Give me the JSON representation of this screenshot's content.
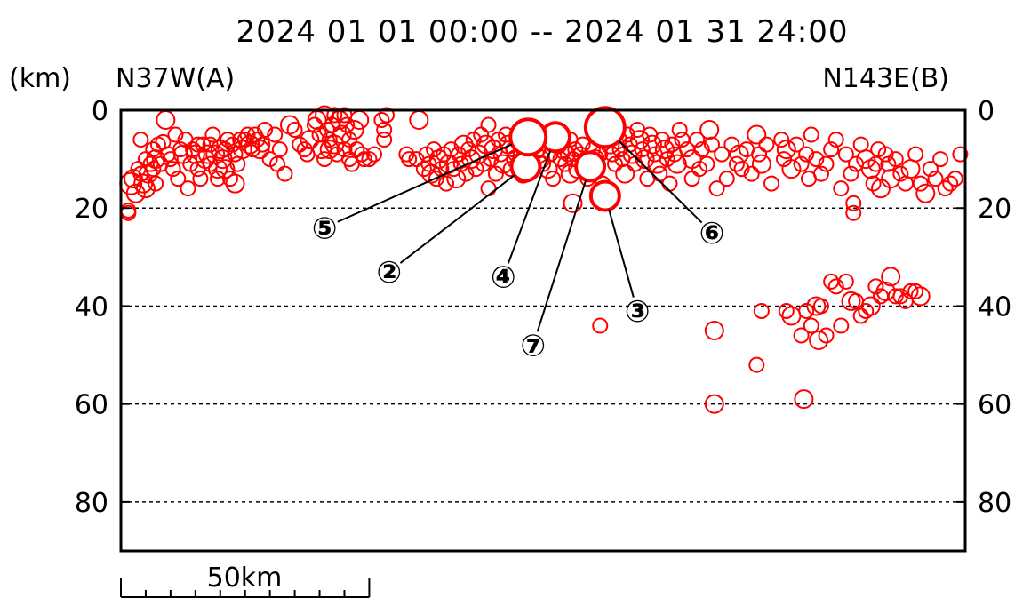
{
  "chart_data": {
    "type": "scatter",
    "title": "2024  01  01  00:00  --  2024  01  31  24:00",
    "unit_label": "(km)",
    "left_end_label": "N37W(A)",
    "right_end_label": "N143E(B)",
    "y_axis": {
      "inverted": true,
      "ylim": [
        0,
        90
      ],
      "ticks": [
        0,
        20,
        40,
        60,
        80
      ],
      "tick_labels": [
        "0",
        "20",
        "40",
        "60",
        "80"
      ],
      "dashed_grid": [
        20,
        40,
        60,
        80
      ]
    },
    "x_axis": {
      "xlim": [
        0,
        170
      ],
      "units": "km"
    },
    "scale_bar": {
      "label": "50km",
      "length_km": 50,
      "minor_tick_km": 5
    },
    "marker_color": "#ff0000",
    "main_shocks": [
      {
        "label": "②",
        "x": 81.5,
        "depth": 11.5,
        "label_x": 54,
        "label_y": 33,
        "mag_size": 6
      },
      {
        "label": "③",
        "x": 97.5,
        "depth": 17.5,
        "label_x": 104,
        "label_y": 41,
        "mag_size": 6
      },
      {
        "label": "④",
        "x": 87.5,
        "depth": 5.5,
        "label_x": 77,
        "label_y": 34,
        "mag_size": 6
      },
      {
        "label": "⑤",
        "x": 82.0,
        "depth": 5.5,
        "label_x": 41,
        "label_y": 24,
        "mag_size": 8
      },
      {
        "label": "⑥",
        "x": 97.5,
        "depth": 3.5,
        "label_x": 119,
        "label_y": 25,
        "mag_size": 9
      },
      {
        "label": "⑦",
        "x": 94.5,
        "depth": 11.5,
        "label_x": 83,
        "label_y": 48,
        "mag_size": 6
      }
    ],
    "points": [
      [
        2,
        15,
        4
      ],
      [
        1.5,
        20.5,
        2
      ],
      [
        2.5,
        14,
        3
      ],
      [
        3,
        17,
        3
      ],
      [
        3.5,
        12,
        2
      ],
      [
        4,
        13,
        2
      ],
      [
        4,
        6,
        2
      ],
      [
        4.5,
        15,
        3
      ],
      [
        5,
        10,
        2
      ],
      [
        5,
        16,
        3
      ],
      [
        5.5,
        13,
        3
      ],
      [
        6,
        11,
        2
      ],
      [
        6.5,
        12,
        2
      ],
      [
        6.5,
        8,
        2
      ],
      [
        7,
        10,
        3
      ],
      [
        7,
        15,
        2
      ],
      [
        7.5,
        7,
        2
      ],
      [
        8,
        11,
        2
      ],
      [
        8.5,
        6.5,
        2
      ],
      [
        9,
        2,
        3
      ],
      [
        9.5,
        9,
        2
      ],
      [
        10,
        10,
        2
      ],
      [
        10.5,
        12,
        2
      ],
      [
        11,
        5,
        2
      ],
      [
        11.5,
        14,
        2
      ],
      [
        12,
        8,
        2
      ],
      [
        12.5,
        9,
        3
      ],
      [
        13,
        6,
        2
      ],
      [
        13.5,
        16,
        2
      ],
      [
        14,
        11,
        2
      ],
      [
        14.5,
        8,
        2
      ],
      [
        15,
        9,
        3
      ],
      [
        15.5,
        7,
        2
      ],
      [
        15.5,
        12,
        2
      ],
      [
        16,
        14,
        2
      ],
      [
        16.5,
        7,
        2
      ],
      [
        17,
        10,
        3
      ],
      [
        17.5,
        9,
        3
      ],
      [
        18,
        11,
        2
      ],
      [
        18,
        7,
        2
      ],
      [
        18.5,
        5,
        2
      ],
      [
        19,
        9,
        3
      ],
      [
        19.5,
        12,
        3
      ],
      [
        19.5,
        14,
        2
      ],
      [
        20,
        8,
        3
      ],
      [
        20.5,
        10,
        3
      ],
      [
        21,
        8,
        2
      ],
      [
        21,
        12,
        3
      ],
      [
        21.5,
        6,
        2
      ],
      [
        22,
        14,
        2
      ],
      [
        22.5,
        7,
        2
      ],
      [
        23,
        9,
        2
      ],
      [
        23,
        15,
        3
      ],
      [
        23.5,
        11,
        2
      ],
      [
        24,
        6,
        2
      ],
      [
        24.5,
        8,
        3
      ],
      [
        25,
        6,
        2
      ],
      [
        25.5,
        5,
        2
      ],
      [
        26,
        7,
        3
      ],
      [
        26.5,
        8,
        2
      ],
      [
        27,
        5,
        2
      ],
      [
        27.5,
        6,
        2
      ],
      [
        28,
        8,
        3
      ],
      [
        28.5,
        7,
        2
      ],
      [
        29,
        4,
        2
      ],
      [
        30,
        10,
        2
      ],
      [
        31,
        5,
        2
      ],
      [
        31.5,
        11,
        2
      ],
      [
        32,
        8,
        2
      ],
      [
        33,
        13,
        2
      ],
      [
        34,
        3,
        3
      ],
      [
        35,
        4,
        2
      ],
      [
        36,
        7,
        2
      ],
      [
        37,
        8,
        2
      ],
      [
        37.5,
        9,
        2
      ],
      [
        38,
        6,
        3
      ],
      [
        39,
        3,
        2
      ],
      [
        39.5,
        2,
        3
      ],
      [
        40,
        5,
        2
      ],
      [
        40.5,
        8,
        3
      ],
      [
        41,
        10,
        2
      ],
      [
        41,
        1,
        3
      ],
      [
        41.5,
        4,
        2
      ],
      [
        42,
        6,
        2
      ],
      [
        42,
        8,
        3
      ],
      [
        42.5,
        3,
        2
      ],
      [
        43,
        1,
        2
      ],
      [
        43,
        7,
        3
      ],
      [
        43.5,
        9,
        2
      ],
      [
        44,
        2,
        3
      ],
      [
        44.5,
        5,
        3
      ],
      [
        45,
        8,
        2
      ],
      [
        45,
        1,
        2
      ],
      [
        45.5,
        3,
        2
      ],
      [
        46,
        6,
        2
      ],
      [
        46,
        10,
        2
      ],
      [
        46.5,
        11,
        2
      ],
      [
        47,
        4,
        3
      ],
      [
        47.5,
        8,
        2
      ],
      [
        48,
        2,
        3
      ],
      [
        48.5,
        9,
        2
      ],
      [
        49,
        10,
        2
      ],
      [
        50,
        10,
        2
      ],
      [
        51,
        9,
        2
      ],
      [
        52.5,
        2,
        2
      ],
      [
        53,
        4,
        2
      ],
      [
        53,
        6,
        2
      ],
      [
        53.5,
        1,
        2
      ],
      [
        57.5,
        9,
        2
      ],
      [
        58,
        10,
        2
      ],
      [
        59.5,
        10,
        2
      ],
      [
        60,
        2,
        3
      ],
      [
        61,
        12,
        2
      ],
      [
        61.5,
        9,
        2
      ],
      [
        62,
        11,
        2
      ],
      [
        62.5,
        13,
        3
      ],
      [
        63,
        8,
        2
      ],
      [
        63.5,
        14,
        2
      ],
      [
        64,
        10,
        3
      ],
      [
        64.5,
        12,
        2
      ],
      [
        65,
        9,
        2
      ],
      [
        65.5,
        15,
        2
      ],
      [
        66,
        11,
        3
      ],
      [
        66.5,
        8,
        2
      ],
      [
        67,
        12,
        2
      ],
      [
        67.5,
        14,
        3
      ],
      [
        68,
        9,
        2
      ],
      [
        68.5,
        11,
        2
      ],
      [
        69,
        7,
        3
      ],
      [
        69.5,
        13,
        2
      ],
      [
        70,
        8,
        2
      ],
      [
        70.5,
        10,
        3
      ],
      [
        71,
        6,
        2
      ],
      [
        71.5,
        12,
        2
      ],
      [
        72,
        9,
        3
      ],
      [
        72.5,
        5,
        2
      ],
      [
        73,
        11,
        2
      ],
      [
        73.5,
        7,
        3
      ],
      [
        74,
        3,
        2
      ],
      [
        74,
        16,
        2
      ],
      [
        74.5,
        10,
        2
      ],
      [
        75,
        8,
        3
      ],
      [
        75.5,
        13,
        2
      ],
      [
        76,
        6,
        2
      ],
      [
        76.5,
        9,
        2
      ],
      [
        77,
        11,
        3
      ],
      [
        77.5,
        5,
        2
      ],
      [
        78,
        7,
        3
      ],
      [
        78.5,
        12,
        2
      ],
      [
        79,
        8,
        2
      ],
      [
        79.5,
        10,
        3
      ],
      [
        80,
        6,
        2
      ],
      [
        80.5,
        9,
        2
      ],
      [
        81,
        13,
        3
      ],
      [
        84,
        8,
        2
      ],
      [
        84.5,
        10,
        3
      ],
      [
        85,
        11,
        2
      ],
      [
        85.5,
        6,
        2
      ],
      [
        86,
        12,
        3
      ],
      [
        86.5,
        9,
        2
      ],
      [
        87,
        14,
        2
      ],
      [
        88,
        7,
        3
      ],
      [
        88.5,
        10,
        2
      ],
      [
        89,
        8,
        3
      ],
      [
        89.5,
        11,
        2
      ],
      [
        90,
        9,
        2
      ],
      [
        90.5,
        6,
        2
      ],
      [
        90.5,
        13,
        3
      ],
      [
        91,
        10,
        2
      ],
      [
        91.5,
        8,
        2
      ],
      [
        91,
        19,
        3
      ],
      [
        92,
        12,
        3
      ],
      [
        92.5,
        9,
        2
      ],
      [
        93,
        7,
        2
      ],
      [
        93.5,
        11,
        3
      ],
      [
        94,
        14,
        2
      ],
      [
        95,
        8,
        2
      ],
      [
        95.5,
        10,
        3
      ],
      [
        96,
        12,
        2
      ],
      [
        96.5,
        9,
        2
      ],
      [
        96.5,
        44,
        2
      ],
      [
        97,
        15,
        2
      ],
      [
        98,
        5,
        2
      ],
      [
        98.5,
        7,
        3
      ],
      [
        99,
        9,
        2
      ],
      [
        99.5,
        11,
        2
      ],
      [
        100,
        3,
        2
      ],
      [
        100,
        6,
        3
      ],
      [
        100.5,
        8,
        2
      ],
      [
        101,
        10,
        2
      ],
      [
        101.5,
        13,
        3
      ],
      [
        102,
        5,
        2
      ],
      [
        102.5,
        7,
        2
      ],
      [
        103,
        9,
        3
      ],
      [
        103.5,
        11,
        2
      ],
      [
        104,
        4,
        2
      ],
      [
        104.5,
        6,
        3
      ],
      [
        105,
        8,
        2
      ],
      [
        105.5,
        10,
        3
      ],
      [
        106,
        14,
        2
      ],
      [
        106.5,
        5,
        2
      ],
      [
        107,
        7,
        3
      ],
      [
        107.5,
        9,
        2
      ],
      [
        108,
        11,
        3
      ],
      [
        108.5,
        13,
        2
      ],
      [
        109,
        6,
        2
      ],
      [
        109.5,
        8,
        3
      ],
      [
        110,
        10,
        2
      ],
      [
        110.5,
        15,
        2
      ],
      [
        111,
        7,
        2
      ],
      [
        111.5,
        9,
        2
      ],
      [
        112,
        11,
        3
      ],
      [
        112.5,
        4,
        2
      ],
      [
        113,
        6,
        2
      ],
      [
        114,
        8,
        2
      ],
      [
        115,
        10,
        3
      ],
      [
        115,
        14,
        2
      ],
      [
        116,
        6,
        2
      ],
      [
        116.5,
        12,
        2
      ],
      [
        117,
        8,
        2
      ],
      [
        118,
        11,
        2
      ],
      [
        118.5,
        4,
        3
      ],
      [
        119,
        7,
        2
      ],
      [
        120,
        16,
        2
      ],
      [
        121,
        9,
        2
      ],
      [
        122,
        14,
        2
      ],
      [
        123,
        7,
        2
      ],
      [
        124,
        11,
        2
      ],
      [
        124.5,
        9,
        3
      ],
      [
        125,
        12,
        2
      ],
      [
        126,
        8,
        2
      ],
      [
        127,
        13,
        2
      ],
      [
        128,
        5,
        3
      ],
      [
        128.5,
        9,
        2
      ],
      [
        129,
        11,
        3
      ],
      [
        130,
        7,
        2
      ],
      [
        131,
        15,
        2
      ],
      [
        133,
        6,
        2
      ],
      [
        133.5,
        10,
        2
      ],
      [
        134,
        8,
        3
      ],
      [
        135,
        12,
        3
      ],
      [
        136,
        7,
        2
      ],
      [
        137,
        11,
        2
      ],
      [
        138,
        9,
        2
      ],
      [
        138.5,
        14,
        2
      ],
      [
        139,
        5,
        2
      ],
      [
        140,
        10,
        2
      ],
      [
        141,
        13,
        2
      ],
      [
        142,
        11,
        2
      ],
      [
        143,
        8,
        2
      ],
      [
        144,
        6,
        2
      ],
      [
        145,
        16,
        2
      ],
      [
        146,
        9,
        2
      ],
      [
        147,
        13,
        2
      ],
      [
        147.5,
        21,
        2
      ],
      [
        148,
        11,
        2
      ],
      [
        149,
        7,
        2
      ],
      [
        150,
        10,
        3
      ],
      [
        151,
        12,
        3
      ],
      [
        151.5,
        15,
        2
      ],
      [
        152,
        11,
        2
      ],
      [
        152.5,
        8,
        2
      ],
      [
        153,
        16,
        3
      ],
      [
        154,
        9,
        2
      ],
      [
        154.5,
        11,
        2
      ],
      [
        155,
        14,
        3
      ],
      [
        156,
        10,
        2
      ],
      [
        157,
        13,
        2
      ],
      [
        158,
        15,
        2
      ],
      [
        159,
        12,
        3
      ],
      [
        160,
        9,
        2
      ],
      [
        161,
        15,
        2
      ],
      [
        162,
        17,
        3
      ],
      [
        163,
        12,
        2
      ],
      [
        164,
        14,
        2
      ],
      [
        165,
        10,
        2
      ],
      [
        166,
        16,
        2
      ],
      [
        167,
        15,
        2
      ],
      [
        168,
        14,
        2
      ],
      [
        169,
        9,
        2
      ],
      [
        119.5,
        45,
        3
      ],
      [
        128,
        52,
        2
      ],
      [
        129,
        41,
        2
      ],
      [
        134,
        41,
        2
      ],
      [
        135,
        42,
        3
      ],
      [
        137,
        46,
        2
      ],
      [
        138,
        41,
        2
      ],
      [
        139,
        44,
        2
      ],
      [
        140,
        40,
        3
      ],
      [
        140.5,
        47,
        3
      ],
      [
        141,
        40,
        2
      ],
      [
        142,
        46,
        2
      ],
      [
        143,
        35,
        2
      ],
      [
        144,
        36,
        2
      ],
      [
        145,
        44,
        2
      ],
      [
        146,
        35,
        2
      ],
      [
        147,
        39,
        3
      ],
      [
        148,
        39,
        2
      ],
      [
        149,
        42,
        2
      ],
      [
        150,
        41,
        2
      ],
      [
        151,
        40,
        3
      ],
      [
        152,
        36,
        2
      ],
      [
        153,
        38,
        2
      ],
      [
        154,
        37,
        3
      ],
      [
        155,
        34,
        3
      ],
      [
        156,
        38,
        2
      ],
      [
        157,
        38,
        2
      ],
      [
        158,
        39,
        2
      ],
      [
        159,
        37,
        2
      ],
      [
        160,
        37,
        2
      ],
      [
        161,
        38,
        3
      ],
      [
        119.5,
        60,
        3
      ],
      [
        137.5,
        59,
        3
      ],
      [
        147.5,
        19,
        2
      ],
      [
        1.5,
        21,
        2
      ]
    ]
  }
}
